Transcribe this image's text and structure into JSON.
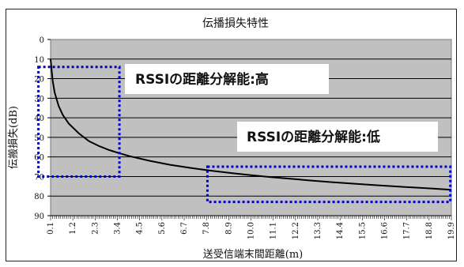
{
  "chart_data": {
    "type": "line",
    "title": "伝播損失特性",
    "xlabel": "送受信端末間距離(m)",
    "ylabel": "伝搬損失(dB)",
    "y_axis_inverted": true,
    "ylim": [
      0,
      90
    ],
    "y_ticks": [
      "0",
      "10",
      "20",
      "30",
      "40",
      "50",
      "60",
      "70",
      "80",
      "90"
    ],
    "x_ticks": [
      "0.1",
      "1.2",
      "2.3",
      "3.4",
      "4.5",
      "5.6",
      "6.7",
      "7.8",
      "8.9",
      "10.0",
      "11.1",
      "12.2",
      "13.3",
      "14.4",
      "15.5",
      "16.6",
      "17.7",
      "18.8",
      "19.9"
    ],
    "xlim": [
      0.1,
      19.9
    ],
    "grid": "horizontal",
    "plot_background": "#c0c0c0",
    "line_color": "#000000",
    "series": [
      {
        "x": [
          0.1,
          0.2,
          0.3,
          0.5,
          0.7,
          1.0,
          1.5,
          2.0,
          2.5,
          3.0,
          3.4,
          4.0,
          5.0,
          6.0,
          7.0,
          8.0,
          9.0,
          10.0,
          11.0,
          12.0,
          13.0,
          14.0,
          15.0,
          16.0,
          17.0,
          18.0,
          19.0,
          19.9
        ],
        "y": [
          10,
          21,
          27,
          34,
          38.5,
          43,
          48,
          52,
          54.5,
          56.5,
          57.8,
          59.6,
          62,
          64,
          65.6,
          67,
          68.2,
          69.3,
          70.3,
          71.2,
          72.1,
          72.9,
          73.6,
          74.3,
          75,
          75.6,
          76.2,
          76.8
        ]
      }
    ],
    "annotations": [
      {
        "text": "RSSIの距離分解能:高",
        "box_color": "#0000cc",
        "box_style": "dotted"
      },
      {
        "text": "RSSIの距離分解能:低",
        "box_color": "#0000cc",
        "box_style": "dotted"
      }
    ]
  }
}
